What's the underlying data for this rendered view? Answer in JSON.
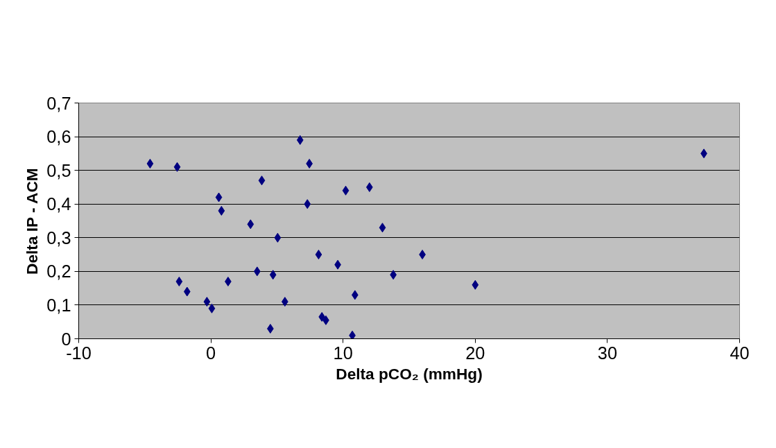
{
  "chart_data": {
    "type": "scatter",
    "xlabel": "Delta pCO₂ (mmHg)",
    "ylabel": "Delta IP - ACM",
    "x": [
      -4.6,
      -2.55,
      -2.4,
      -1.8,
      -0.3,
      0.07,
      0.6,
      0.8,
      1.3,
      3.0,
      3.85,
      3.5,
      4.7,
      5.05,
      4.5,
      5.6,
      6.75,
      7.45,
      7.3,
      8.15,
      8.4,
      8.7,
      9.6,
      10.2,
      10.7,
      10.9,
      12.0,
      12.98,
      13.8,
      16.0,
      20.0,
      37.3
    ],
    "series": [
      {
        "color": "#000080",
        "values": [
          0.52,
          0.51,
          0.17,
          0.14,
          0.11,
          0.09,
          0.42,
          0.38,
          0.17,
          0.34,
          0.47,
          0.2,
          0.19,
          0.3,
          0.03,
          0.11,
          0.59,
          0.52,
          0.4,
          0.25,
          0.065,
          0.055,
          0.22,
          0.44,
          0.01,
          0.13,
          0.45,
          0.33,
          0.19,
          0.25,
          0.16,
          0.55
        ]
      }
    ],
    "xlim": [
      -10,
      40
    ],
    "xticks": [
      -10,
      0,
      10,
      20,
      30,
      40
    ],
    "ylim": [
      0,
      0.7
    ],
    "yticks": [
      {
        "value": 0,
        "label": "0"
      },
      {
        "value": 0.1,
        "label": "0,1"
      },
      {
        "value": 0.2,
        "label": "0,2"
      },
      {
        "value": 0.3,
        "label": "0,3"
      },
      {
        "value": 0.4,
        "label": "0,4"
      },
      {
        "value": 0.5,
        "label": "0,5"
      },
      {
        "value": 0.6,
        "label": "0,6"
      },
      {
        "value": 0.7,
        "label": "0,7"
      }
    ],
    "grid": "y",
    "marker": "diamond"
  }
}
